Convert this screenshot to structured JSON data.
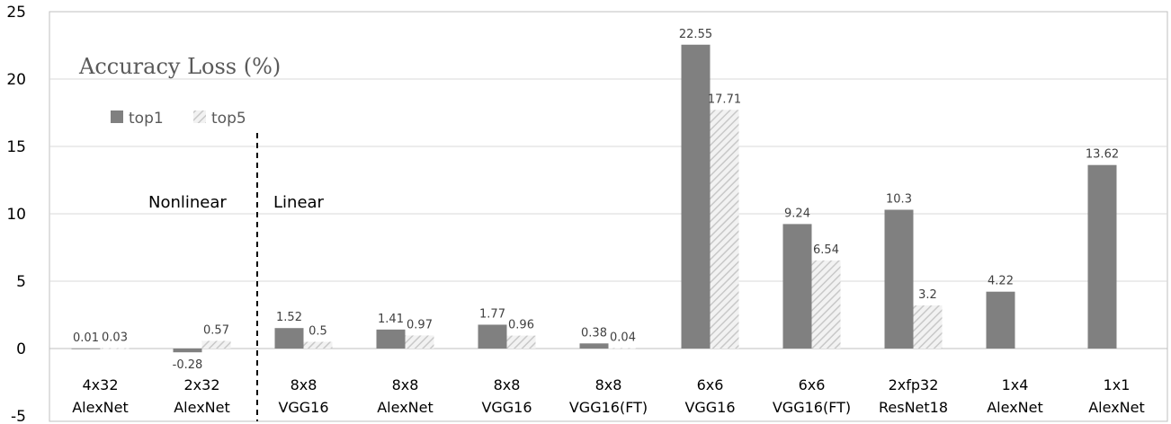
{
  "chart_data": {
    "type": "bar",
    "title": "Accuracy Loss (%)",
    "xlabel": "",
    "ylabel": "",
    "ylim": [
      -5,
      25
    ],
    "yticks": [
      -5,
      0,
      5,
      10,
      15,
      20,
      25
    ],
    "grid": true,
    "legend_position": "top-left",
    "categories": [
      [
        "4x32",
        "AlexNet"
      ],
      [
        "2x32",
        "AlexNet"
      ],
      [
        "8x8",
        "VGG16"
      ],
      [
        "8x8",
        "AlexNet"
      ],
      [
        "8x8",
        "VGG16"
      ],
      [
        "8x8",
        "VGG16(FT)"
      ],
      [
        "6x6",
        "VGG16"
      ],
      [
        "6x6",
        "VGG16(FT)"
      ],
      [
        "2xfp32",
        "ResNet18"
      ],
      [
        "1x4",
        "AlexNet"
      ],
      [
        "1x1",
        "AlexNet"
      ]
    ],
    "series": [
      {
        "name": "top1",
        "color": "#808080",
        "pattern": "solid",
        "values": [
          0.01,
          -0.28,
          1.52,
          1.41,
          1.77,
          0.38,
          22.55,
          9.24,
          10.3,
          4.22,
          13.62
        ],
        "labels": [
          "0.01",
          "-0.28",
          "1.52",
          "1.41",
          "1.77",
          "0.38",
          "22.55",
          "9.24",
          "10.3",
          "4.22",
          "13.62"
        ]
      },
      {
        "name": "top5",
        "color": "#d0d0d0",
        "pattern": "hatched",
        "values": [
          0.03,
          0.57,
          0.5,
          0.97,
          0.96,
          0.04,
          17.71,
          6.54,
          3.2,
          null,
          null
        ],
        "labels": [
          "0.03",
          "0.57",
          "0.5",
          "0.97",
          "0.96",
          "0.04",
          "17.71",
          "6.54",
          "3.2",
          "",
          ""
        ]
      }
    ],
    "annotations": {
      "left_region": "Nonlinear",
      "right_region": "Linear",
      "divider_after_category": 1
    }
  }
}
